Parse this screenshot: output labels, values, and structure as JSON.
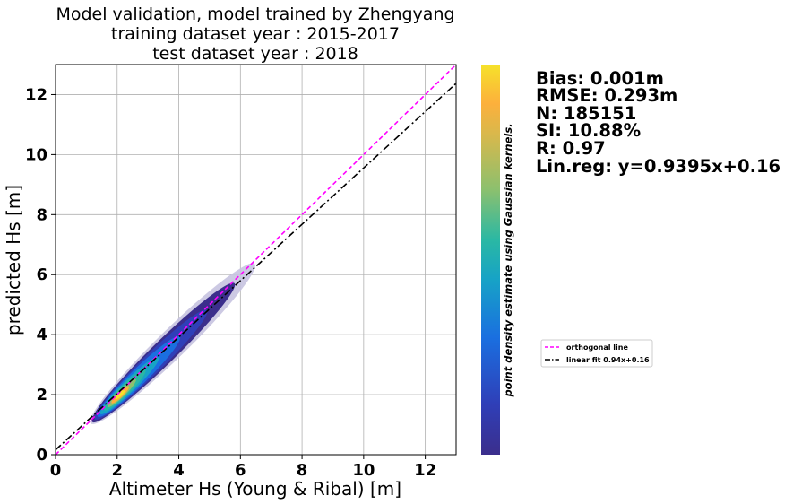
{
  "chart_data": {
    "type": "scatter",
    "title_lines": [
      "Model validation, model trained by Zhengyang",
      "training dataset year : 2015-2017",
      "test dataset year : 2018"
    ],
    "xlabel": "Altimeter Hs (Young & Ribal) [m]",
    "ylabel": "predicted Hs [m]",
    "xlim": [
      0,
      13
    ],
    "ylim": [
      0,
      13
    ],
    "xticks": [
      0,
      2,
      4,
      6,
      8,
      10,
      12
    ],
    "yticks": [
      0,
      2,
      4,
      6,
      8,
      10,
      12
    ],
    "grid": true,
    "point_cloud": {
      "description_values": "dense cloud along y≈x, densest near (2, 2)",
      "x_range": [
        0.3,
        7.3
      ],
      "y_range": [
        0.5,
        7.1
      ],
      "peak": [
        2.1,
        2.0
      ]
    },
    "lines": [
      {
        "name": "orthogonal line",
        "slope": 1,
        "intercept": 0,
        "color": "#ff00ff",
        "style": "dashed"
      },
      {
        "name": "linear fit 0.94x+0.16",
        "slope": 0.9395,
        "intercept": 0.16,
        "color": "#000000",
        "style": "dashdot"
      }
    ],
    "legend_position": "center-right, outside plot",
    "colorbar_label": "point density estimate using Gaussian kernels.",
    "colormap": [
      "#3b2e8c",
      "#2f3fb8",
      "#1a6fe0",
      "#17a3c6",
      "#2ab8a4",
      "#8cc06e",
      "#d8b84c",
      "#fcb03c",
      "#f6e22a"
    ],
    "stats": [
      "Bias: 0.001m",
      "RMSE: 0.293m",
      "N: 185151",
      "SI: 10.88%",
      "R: 0.97",
      "Lin.reg: y=0.9395x+0.16"
    ]
  }
}
